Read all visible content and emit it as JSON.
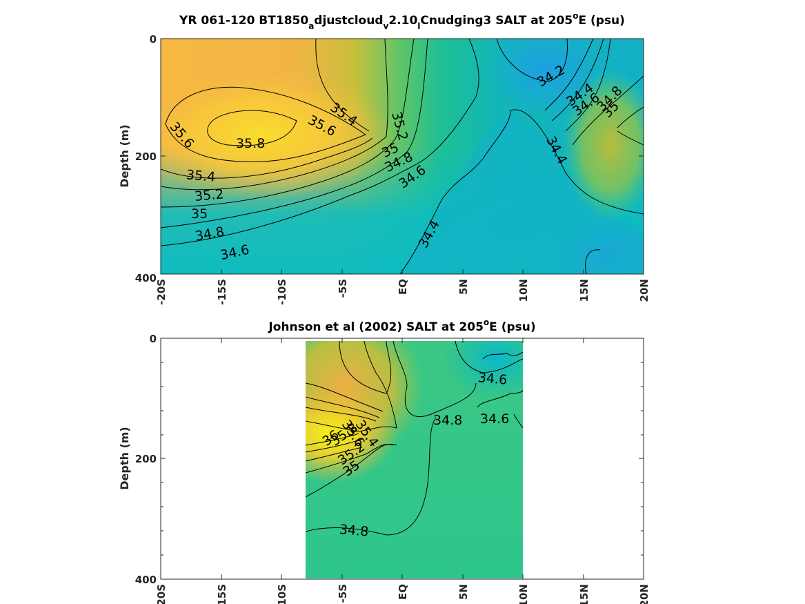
{
  "chart_data": [
    {
      "type": "contour",
      "title_parts": {
        "prefix": "YR 061-120 BT1850",
        "sub1": "a",
        "mid1": "djustcloud",
        "sub2": "v",
        "mid2": "2.10",
        "sub3": "l",
        "mid3": "Cnudging3 SALT at 205",
        "sup": "o",
        "suffix": "E (psu)"
      },
      "ylabel": "Depth (m)",
      "xlabel": "",
      "x_ticks": [
        "-20S",
        "-15S",
        "-10S",
        "-5S",
        "EQ",
        "5N",
        "10N",
        "15N",
        "20N"
      ],
      "xlim": [
        -20,
        20
      ],
      "y_ticks": [
        "0",
        "200",
        "400"
      ],
      "ylim": [
        0,
        400
      ],
      "y_reversed": true,
      "colormap": "parula",
      "contour_labels": [
        "35.8",
        "35.6",
        "35.6",
        "35.4",
        "35.4",
        "35.2",
        "35",
        "34.8",
        "34.6",
        "35.2",
        "35",
        "34.8",
        "34.6",
        "34.4",
        "34.2",
        "34.4",
        "34.6",
        "34.8",
        "35",
        "34.4"
      ]
    },
    {
      "type": "contour",
      "title_parts": {
        "prefix": "Johnson et al (2002) SALT at 205",
        "sup": "o",
        "suffix": "E (psu)"
      },
      "ylabel": "Depth (m)",
      "xlabel": "",
      "x_ticks": [
        "-20S",
        "-15S",
        "-10S",
        "-5S",
        "EQ",
        "5N",
        "10N",
        "15N",
        "20N"
      ],
      "xlim": [
        -20,
        20
      ],
      "data_xlim": [
        -8,
        10
      ],
      "y_ticks": [
        "0",
        "200",
        "400"
      ],
      "ylim": [
        0,
        400
      ],
      "y_reversed": true,
      "colormap": "parula",
      "contour_labels": [
        "36",
        "35.8",
        "35.6",
        "35.4",
        "35.2",
        "35",
        "34.8",
        "34.8",
        "34.6",
        "34.6"
      ]
    }
  ]
}
